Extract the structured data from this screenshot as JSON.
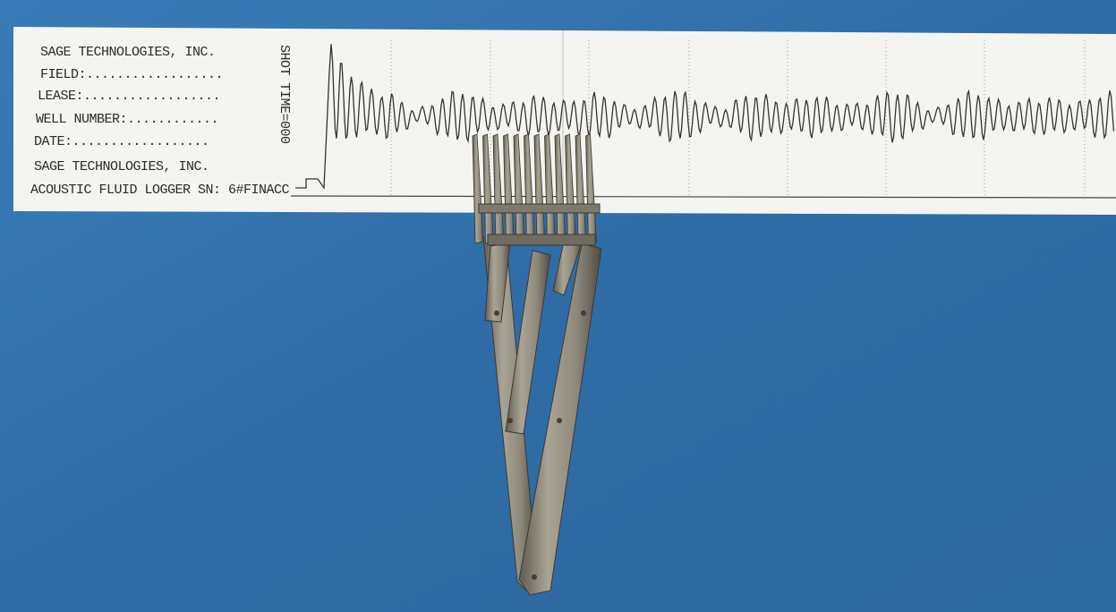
{
  "strip": {
    "header_lines": [
      "SAGE TECHNOLOGIES, INC.",
      "FIELD:..................",
      "LEASE:..................",
      "WELL NUMBER:............",
      "DATE:..................",
      "SAGE TECHNOLOGIES, INC.",
      "ACOUSTIC FLUID LOGGER SN: 6#FINACC"
    ],
    "vertical_label": "SHOT TIME=000"
  }
}
